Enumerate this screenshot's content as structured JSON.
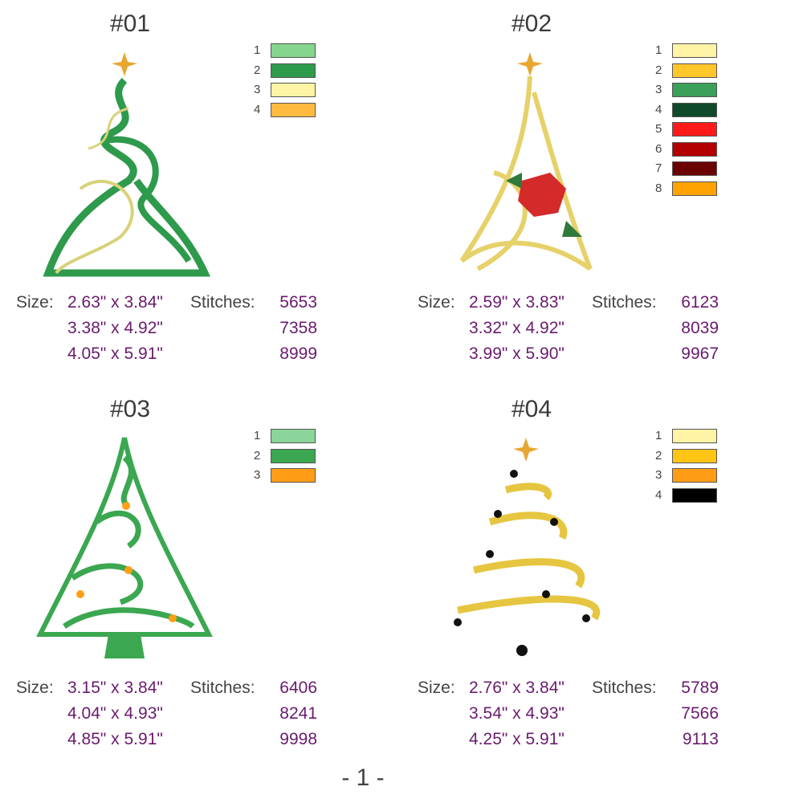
{
  "designs": [
    {
      "title": "#01",
      "colors": [
        {
          "number": "1",
          "color": "#86d58e"
        },
        {
          "number": "2",
          "color": "#2e9a4c"
        },
        {
          "number": "3",
          "color": "#fff3a6"
        },
        {
          "number": "4",
          "color": "#ffbb40"
        }
      ],
      "size_label": "Size:",
      "stitches_label": "Stitches:",
      "sizes": [
        {
          "size": "2.63\" x 3.84\"",
          "stitches": 5653
        },
        {
          "size": "3.38\" x 4.92\"",
          "stitches": 7358
        },
        {
          "size": "4.05\" x 5.91\"",
          "stitches": 8999
        }
      ]
    },
    {
      "title": "#02",
      "colors": [
        {
          "number": "1",
          "color": "#fff3a6"
        },
        {
          "number": "2",
          "color": "#ffc72a"
        },
        {
          "number": "3",
          "color": "#3aa05a"
        },
        {
          "number": "4",
          "color": "#0f4a2a"
        },
        {
          "number": "5",
          "color": "#ff1a1a"
        },
        {
          "number": "6",
          "color": "#b30000"
        },
        {
          "number": "7",
          "color": "#6b0000"
        },
        {
          "number": "8",
          "color": "#ffa300"
        }
      ],
      "size_label": "Size:",
      "stitches_label": "Stitches:",
      "sizes": [
        {
          "size": "2.59\" x 3.83\"",
          "stitches": 6123
        },
        {
          "size": "3.32\" x 4.92\"",
          "stitches": 8039
        },
        {
          "size": "3.99\" x 5.90\"",
          "stitches": 9967
        }
      ]
    },
    {
      "title": "#03",
      "colors": [
        {
          "number": "1",
          "color": "#8bd49a"
        },
        {
          "number": "2",
          "color": "#3ba750"
        },
        {
          "number": "3",
          "color": "#ff9e16"
        }
      ],
      "size_label": "Size:",
      "stitches_label": "Stitches:",
      "sizes": [
        {
          "size": "3.15\" x 3.84\"",
          "stitches": 6406
        },
        {
          "size": "4.04\" x 4.93\"",
          "stitches": 8241
        },
        {
          "size": "4.85\" x 5.91\"",
          "stitches": 9998
        }
      ]
    },
    {
      "title": "#04",
      "colors": [
        {
          "number": "1",
          "color": "#fff3a6"
        },
        {
          "number": "2",
          "color": "#ffc414"
        },
        {
          "number": "3",
          "color": "#ff9e16"
        },
        {
          "number": "4",
          "color": "#000000"
        }
      ],
      "size_label": "Size:",
      "stitches_label": "Stitches:",
      "sizes": [
        {
          "size": "2.76\" x 3.84\"",
          "stitches": 5789
        },
        {
          "size": "3.54\" x 4.93\"",
          "stitches": 7566
        },
        {
          "size": "4.25\" x 5.91\"",
          "stitches": 9113
        }
      ]
    }
  ],
  "footer": "- 1 -"
}
